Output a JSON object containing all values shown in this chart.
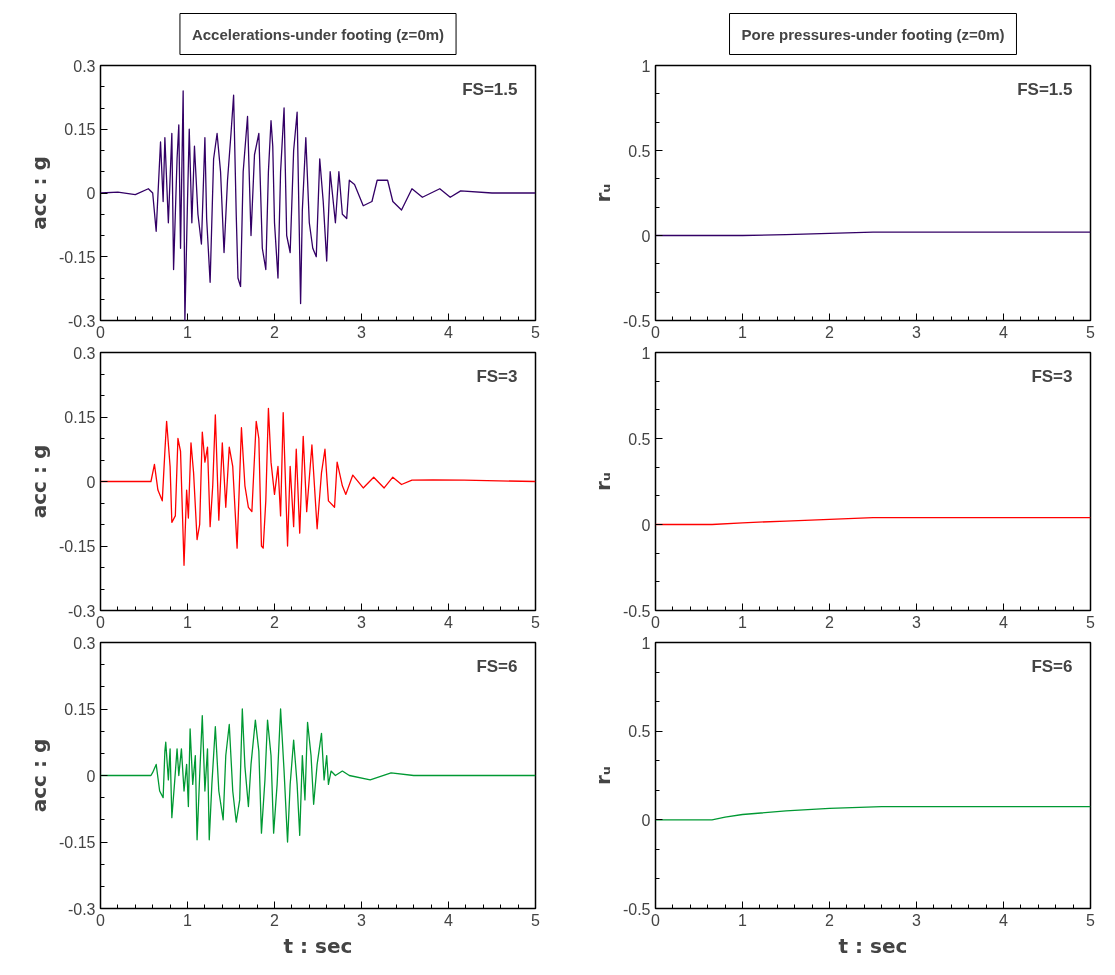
{
  "chart_data": [
    {
      "type": "line",
      "title": "Accelerations-under footing (z=0m)",
      "ylabel": "acc : g",
      "annotations": [
        "FS=1.5"
      ],
      "xlim": [
        0,
        5
      ],
      "xticks": [
        0,
        1,
        2,
        3,
        4,
        5
      ],
      "ylim": [
        -0.3,
        0.3
      ],
      "yticks": [
        -0.3,
        -0.15,
        0,
        0.15,
        0.3
      ],
      "grid": false,
      "series": [
        {
          "color": "#330066",
          "x": [
            0,
            0.2,
            0.4,
            0.55,
            0.6,
            0.64,
            0.69,
            0.72,
            0.74,
            0.78,
            0.82,
            0.84,
            0.88,
            0.9,
            0.92,
            0.95,
            0.97,
            1.0,
            1.02,
            1.05,
            1.08,
            1.12,
            1.16,
            1.2,
            1.22,
            1.26,
            1.3,
            1.34,
            1.38,
            1.42,
            1.46,
            1.5,
            1.53,
            1.56,
            1.58,
            1.61,
            1.64,
            1.69,
            1.73,
            1.77,
            1.82,
            1.86,
            1.9,
            1.93,
            1.96,
            1.98,
            2.0,
            2.04,
            2.07,
            2.11,
            2.14,
            2.18,
            2.22,
            2.26,
            2.3,
            2.32,
            2.36,
            2.4,
            2.44,
            2.48,
            2.52,
            2.56,
            2.6,
            2.64,
            2.7,
            2.74,
            2.78,
            2.83,
            2.86,
            2.92,
            3.02,
            3.12,
            3.18,
            3.3,
            3.36,
            3.46,
            3.58,
            3.7,
            3.9,
            4.02,
            4.14,
            4.5,
            5
          ],
          "values": [
            0,
            0.002,
            -0.004,
            0.01,
            0,
            -0.09,
            0.12,
            -0.02,
            0.13,
            -0.07,
            0.14,
            -0.18,
            0.08,
            0.16,
            -0.13,
            0.24,
            -0.3,
            -0.02,
            0.15,
            -0.07,
            0.11,
            -0.05,
            -0.12,
            0.13,
            -0.06,
            -0.21,
            0.08,
            0.14,
            0.05,
            -0.14,
            0.03,
            0.14,
            0.23,
            -0.05,
            -0.2,
            -0.22,
            0.05,
            0.18,
            -0.1,
            0.09,
            0.14,
            -0.13,
            -0.18,
            0.05,
            0.17,
            0.11,
            -0.07,
            -0.2,
            0.05,
            0.2,
            -0.1,
            -0.14,
            0.1,
            0.19,
            -0.26,
            -0.04,
            0.13,
            -0.07,
            -0.13,
            -0.15,
            0.08,
            -0.02,
            -0.16,
            0.05,
            -0.07,
            0.05,
            -0.05,
            -0.06,
            0.03,
            0.02,
            -0.03,
            -0.02,
            0.03,
            0.03,
            -0.02,
            -0.04,
            0.01,
            -0.01,
            0.01,
            -0.01,
            0.005,
            0,
            0
          ]
        }
      ]
    },
    {
      "type": "line",
      "title": "Pore pressures-under footing (z=0m)",
      "ylabel": "rᵤ",
      "annotations": [
        "FS=1.5"
      ],
      "xlim": [
        0,
        5
      ],
      "xticks": [
        0,
        1,
        2,
        3,
        4,
        5
      ],
      "ylim": [
        -0.5,
        1
      ],
      "yticks": [
        -0.5,
        0,
        0.5,
        1
      ],
      "grid": false,
      "series": [
        {
          "color": "#330066",
          "x": [
            0,
            0.7,
            1.0,
            1.5,
            2.0,
            2.5,
            3.0,
            4.0,
            5.0
          ],
          "values": [
            0,
            0,
            0,
            0.005,
            0.012,
            0.02,
            0.02,
            0.02,
            0.02
          ]
        }
      ]
    },
    {
      "type": "line",
      "ylabel": "acc : g",
      "annotations": [
        "FS=3"
      ],
      "xlim": [
        0,
        5
      ],
      "xticks": [
        0,
        1,
        2,
        3,
        4,
        5
      ],
      "ylim": [
        -0.3,
        0.3
      ],
      "yticks": [
        -0.3,
        -0.15,
        0,
        0.15,
        0.3
      ],
      "grid": false,
      "series": [
        {
          "color": "#ff0000",
          "x": [
            0,
            0.3,
            0.58,
            0.62,
            0.66,
            0.71,
            0.74,
            0.76,
            0.8,
            0.82,
            0.86,
            0.89,
            0.92,
            0.96,
            0.99,
            1.01,
            1.04,
            1.07,
            1.11,
            1.14,
            1.17,
            1.2,
            1.23,
            1.26,
            1.29,
            1.32,
            1.36,
            1.4,
            1.44,
            1.48,
            1.52,
            1.57,
            1.62,
            1.66,
            1.7,
            1.74,
            1.79,
            1.82,
            1.85,
            1.87,
            1.9,
            1.93,
            1.96,
            2.0,
            2.04,
            2.07,
            2.1,
            2.15,
            2.18,
            2.22,
            2.25,
            2.29,
            2.33,
            2.37,
            2.43,
            2.49,
            2.54,
            2.58,
            2.62,
            2.69,
            2.72,
            2.78,
            2.82,
            2.9,
            3.02,
            3.14,
            3.26,
            3.36,
            3.46,
            3.58,
            3.82,
            4.18,
            5
          ],
          "values": [
            0,
            0,
            0,
            0.04,
            -0.02,
            -0.045,
            0.07,
            0.14,
            0.035,
            -0.095,
            -0.08,
            0.1,
            0.07,
            -0.195,
            -0.02,
            -0.085,
            0.09,
            0.02,
            -0.135,
            -0.1,
            0.115,
            0.045,
            0.08,
            -0.105,
            -0.01,
            0.155,
            -0.09,
            0.09,
            -0.06,
            0.08,
            0.035,
            -0.155,
            0.125,
            -0.01,
            -0.06,
            -0.07,
            0.14,
            0.1,
            -0.15,
            -0.155,
            -0.045,
            0.17,
            0.045,
            -0.03,
            0.035,
            -0.08,
            0.16,
            -0.15,
            0.035,
            -0.105,
            0.075,
            -0.12,
            0.105,
            -0.07,
            0.085,
            -0.11,
            0.02,
            0.075,
            -0.045,
            -0.06,
            0.045,
            -0.01,
            -0.03,
            0.015,
            -0.015,
            0.01,
            -0.015,
            0.01,
            -0.007,
            0.003,
            0.004,
            0.003,
            0
          ]
        }
      ]
    },
    {
      "type": "line",
      "ylabel": "rᵤ",
      "annotations": [
        "FS=3"
      ],
      "xlim": [
        0,
        5
      ],
      "xticks": [
        0,
        1,
        2,
        3,
        4,
        5
      ],
      "ylim": [
        -0.5,
        1
      ],
      "yticks": [
        -0.5,
        0,
        0.5,
        1
      ],
      "grid": false,
      "series": [
        {
          "color": "#ff0000",
          "x": [
            0,
            0.65,
            1.0,
            1.5,
            2.0,
            2.5,
            3.0,
            4.0,
            5.0
          ],
          "values": [
            0,
            0,
            0.01,
            0.02,
            0.03,
            0.04,
            0.04,
            0.04,
            0.04
          ]
        }
      ]
    },
    {
      "type": "line",
      "ylabel": "acc : g",
      "xlabel": "t : sec",
      "annotations": [
        "FS=6"
      ],
      "xlim": [
        0,
        5
      ],
      "xticks": [
        0,
        1,
        2,
        3,
        4,
        5
      ],
      "ylim": [
        -0.3,
        0.3
      ],
      "yticks": [
        -0.3,
        -0.15,
        0,
        0.15,
        0.3
      ],
      "grid": false,
      "series": [
        {
          "color": "#009933",
          "x": [
            0,
            0.3,
            0.58,
            0.6,
            0.64,
            0.68,
            0.72,
            0.74,
            0.75,
            0.78,
            0.8,
            0.82,
            0.85,
            0.88,
            0.9,
            0.93,
            0.96,
            0.99,
            1.01,
            1.03,
            1.06,
            1.09,
            1.11,
            1.14,
            1.17,
            1.2,
            1.23,
            1.25,
            1.28,
            1.32,
            1.36,
            1.41,
            1.44,
            1.48,
            1.52,
            1.56,
            1.6,
            1.63,
            1.66,
            1.7,
            1.73,
            1.78,
            1.82,
            1.85,
            1.89,
            1.92,
            1.96,
            1.99,
            2.03,
            2.07,
            2.11,
            2.15,
            2.18,
            2.22,
            2.26,
            2.29,
            2.32,
            2.35,
            2.38,
            2.42,
            2.45,
            2.49,
            2.54,
            2.57,
            2.6,
            2.62,
            2.65,
            2.7,
            2.78,
            2.86,
            3.1,
            3.34,
            3.6,
            5
          ],
          "values": [
            0,
            0,
            0,
            0.007,
            0.025,
            -0.035,
            -0.05,
            0.055,
            0.075,
            -0.01,
            0.06,
            -0.095,
            -0.02,
            0.06,
            0,
            0.06,
            -0.035,
            0.025,
            -0.07,
            0.105,
            -0.02,
            0.045,
            -0.145,
            0,
            0.135,
            -0.035,
            0.06,
            -0.145,
            -0.02,
            0.11,
            -0.035,
            -0.1,
            0.045,
            0.115,
            -0.035,
            -0.105,
            -0.055,
            0.15,
            0.02,
            -0.07,
            0.025,
            0.125,
            0.055,
            -0.13,
            -0.01,
            0.125,
            0.045,
            -0.13,
            -0.02,
            0.15,
            0.01,
            -0.15,
            -0.02,
            0.08,
            -0.02,
            -0.135,
            0.045,
            -0.055,
            0.12,
            0.045,
            -0.065,
            0.025,
            0.095,
            -0.01,
            0.045,
            -0.02,
            0.01,
            0,
            0.01,
            0,
            -0.01,
            0.006,
            0,
            0
          ]
        }
      ]
    },
    {
      "type": "line",
      "ylabel": "rᵤ",
      "xlabel": "t : sec",
      "annotations": [
        "FS=6"
      ],
      "xlim": [
        0,
        5
      ],
      "xticks": [
        0,
        1,
        2,
        3,
        4,
        5
      ],
      "ylim": [
        -0.5,
        1
      ],
      "yticks": [
        -0.5,
        0,
        0.5,
        1
      ],
      "grid": false,
      "series": [
        {
          "color": "#009933",
          "x": [
            0,
            0.65,
            0.8,
            1.0,
            1.5,
            2.0,
            2.6,
            3.0,
            4.0,
            5.0
          ],
          "values": [
            0,
            0,
            0.015,
            0.03,
            0.05,
            0.065,
            0.075,
            0.075,
            0.075,
            0.075
          ]
        }
      ]
    }
  ]
}
